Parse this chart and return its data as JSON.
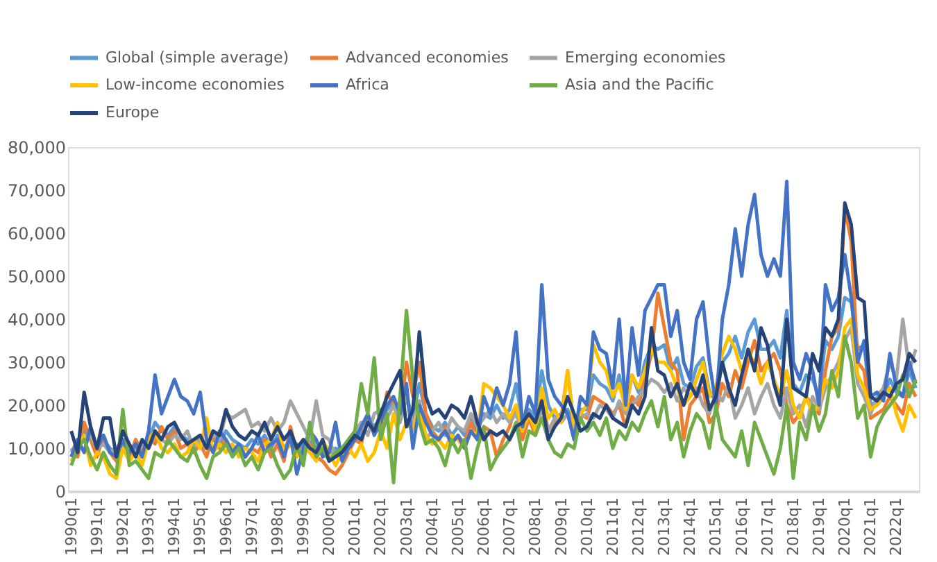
{
  "chart_data": {
    "type": "line",
    "categories": [
      "1990q1",
      null,
      null,
      null,
      "1991q1",
      null,
      null,
      null,
      "1992q1",
      null,
      null,
      null,
      "1993q1",
      null,
      null,
      null,
      "1994q1",
      null,
      null,
      null,
      "1995q1",
      null,
      null,
      null,
      "1996q1",
      null,
      null,
      null,
      "1997q1",
      null,
      null,
      null,
      "1998q1",
      null,
      null,
      null,
      "1999q1",
      null,
      null,
      null,
      "2000q1",
      null,
      null,
      null,
      "2001q1",
      null,
      null,
      null,
      "2002q1",
      null,
      null,
      null,
      "2003q1",
      null,
      null,
      null,
      "2004q1",
      null,
      null,
      null,
      "2005q1",
      null,
      null,
      null,
      "2006q1",
      null,
      null,
      null,
      "2007q1",
      null,
      null,
      null,
      "2008q1",
      null,
      null,
      null,
      "2009q1",
      null,
      null,
      null,
      "2010q1",
      null,
      null,
      null,
      "2011q1",
      null,
      null,
      null,
      "2012q1",
      null,
      null,
      null,
      "2013q1",
      null,
      null,
      null,
      "2014q1",
      null,
      null,
      null,
      "2015q1",
      null,
      null,
      null,
      "2016q1",
      null,
      null,
      null,
      "2017q1",
      null,
      null,
      null,
      "2018q1",
      null,
      null,
      null,
      "2019q1",
      null,
      null,
      null,
      "2020q1",
      null,
      null,
      null,
      "2021q1",
      null,
      null,
      null,
      "2022q1",
      null,
      null,
      null
    ],
    "ylim": [
      0,
      80000
    ],
    "yticks": [
      0,
      {
        "value": 10000,
        "label": "10,000"
      },
      {
        "value": 20000,
        "label": "20,000"
      },
      {
        "value": 30000,
        "label": "30,000"
      },
      {
        "value": 40000,
        "label": "40,000"
      },
      {
        "value": 50000,
        "label": "50,000"
      },
      {
        "value": 60000,
        "label": "60,000"
      },
      {
        "value": 70000,
        "label": "70,000"
      },
      {
        "value": 80000,
        "label": "80,000"
      }
    ],
    "grid": false,
    "legend": "top",
    "line_style": "solid",
    "marker": "none",
    "series": [
      {
        "name": "Global (simple average)",
        "color": "#5b9bd5",
        "values": [
          8000,
          11000,
          14000,
          12000,
          9000,
          12000,
          10000,
          9000,
          11000,
          9000,
          10000,
          8000,
          12000,
          16000,
          14000,
          13000,
          15000,
          13000,
          12000,
          11000,
          12000,
          10000,
          12000,
          11000,
          14000,
          12000,
          11000,
          10000,
          12000,
          11000,
          13000,
          10000,
          13000,
          10000,
          12000,
          9000,
          11000,
          12000,
          10000,
          9000,
          8000,
          10000,
          9000,
          11000,
          14000,
          13000,
          17000,
          15000,
          17000,
          19000,
          21000,
          19000,
          22000,
          17000,
          25000,
          18000,
          15000,
          14000,
          16000,
          13000,
          15000,
          13000,
          17000,
          14000,
          18000,
          17000,
          20000,
          17000,
          19000,
          25000,
          16000,
          19000,
          17000,
          28000,
          20000,
          17000,
          18000,
          19000,
          15000,
          19000,
          19000,
          27000,
          25000,
          24000,
          21000,
          27000,
          19000,
          27000,
          23000,
          30000,
          34000,
          33000,
          34000,
          28000,
          31000,
          25000,
          24000,
          29000,
          31000,
          23000,
          21000,
          30000,
          32000,
          36000,
          31000,
          37000,
          40000,
          33000,
          33000,
          35000,
          31000,
          42000,
          25000,
          23000,
          27000,
          26000,
          22000,
          35000,
          33000,
          36000,
          45000,
          44000,
          33000,
          34000,
          20000,
          21000,
          22000,
          26000,
          23000,
          22000,
          28000,
          24000
        ]
      },
      {
        "name": "Advanced economies",
        "color": "#ed7d31",
        "values": [
          10000,
          8000,
          16000,
          12000,
          8000,
          13000,
          9000,
          7000,
          10000,
          8000,
          12000,
          9000,
          13000,
          11000,
          15000,
          12000,
          14000,
          10000,
          11000,
          9000,
          11000,
          8000,
          13000,
          10000,
          12000,
          9000,
          10000,
          8000,
          10000,
          9000,
          12000,
          8000,
          11000,
          7000,
          15000,
          9000,
          10000,
          11000,
          8000,
          7000,
          5000,
          4000,
          6000,
          9000,
          12000,
          11000,
          18000,
          14000,
          15000,
          23000,
          20000,
          17000,
          30000,
          22000,
          30000,
          18000,
          14000,
          12000,
          15000,
          11000,
          13000,
          11000,
          16000,
          12000,
          15000,
          14000,
          8000,
          12000,
          15000,
          20000,
          12000,
          17000,
          13000,
          22000,
          14000,
          16000,
          17000,
          28000,
          15000,
          18000,
          17000,
          22000,
          21000,
          20000,
          18000,
          20000,
          15000,
          22000,
          20000,
          26000,
          32000,
          46000,
          38000,
          30000,
          28000,
          12000,
          20000,
          22000,
          24000,
          16000,
          18000,
          25000,
          22000,
          28000,
          24000,
          30000,
          35000,
          28000,
          30000,
          32000,
          28000,
          20000,
          16000,
          18000,
          22000,
          20000,
          18000,
          28000,
          36000,
          38000,
          66000,
          58000,
          30000,
          28000,
          17000,
          18000,
          19000,
          22000,
          20000,
          18000,
          25000,
          22000
        ]
      },
      {
        "name": "Emerging economies",
        "color": "#a5a5a5",
        "values": [
          9000,
          12000,
          12000,
          13000,
          10000,
          11000,
          9000,
          10000,
          12000,
          10000,
          9000,
          11000,
          10000,
          13000,
          12000,
          11000,
          13000,
          12000,
          14000,
          10000,
          12000,
          11000,
          13000,
          12000,
          18000,
          17000,
          18000,
          19000,
          15000,
          16000,
          14000,
          17000,
          14000,
          16000,
          21000,
          18000,
          15000,
          12000,
          21000,
          13000,
          12000,
          8000,
          10000,
          11000,
          14000,
          16000,
          13000,
          18000,
          19000,
          17000,
          20000,
          16000,
          22000,
          15000,
          21000,
          12000,
          14000,
          16000,
          13000,
          17000,
          15000,
          14000,
          18000,
          15000,
          17000,
          19000,
          16000,
          18000,
          16000,
          18000,
          14000,
          18000,
          15000,
          19000,
          14000,
          17000,
          16000,
          18000,
          14000,
          17000,
          18000,
          17000,
          20000,
          19000,
          17000,
          21000,
          18000,
          20000,
          22000,
          24000,
          26000,
          25000,
          23000,
          25000,
          21000,
          24000,
          22000,
          24000,
          20000,
          18000,
          23000,
          21000,
          25000,
          17000,
          20000,
          24000,
          18000,
          22000,
          25000,
          20000,
          17000,
          24000,
          18000,
          20000,
          15000,
          22000,
          19000,
          24000,
          27000,
          30000,
          35000,
          38000,
          25000,
          22000,
          18000,
          22000,
          24000,
          30000,
          26000,
          40000,
          28000,
          33000
        ]
      },
      {
        "name": "Low-income economies",
        "color": "#ffc000",
        "values": [
          7000,
          10000,
          13000,
          6000,
          9000,
          8000,
          4000,
          3000,
          10000,
          7000,
          9000,
          6000,
          12000,
          14000,
          10000,
          9000,
          11000,
          8000,
          9000,
          12000,
          10000,
          17000,
          9000,
          11000,
          9000,
          11000,
          8000,
          10000,
          9000,
          7000,
          11000,
          12000,
          16000,
          9000,
          11000,
          8000,
          10000,
          9000,
          7000,
          12000,
          9000,
          6000,
          9000,
          10000,
          8000,
          11000,
          7000,
          9000,
          14000,
          10000,
          18000,
          12000,
          16000,
          14000,
          20000,
          13000,
          11000,
          12000,
          10000,
          13000,
          12000,
          10000,
          14000,
          13000,
          25000,
          24000,
          22000,
          20000,
          17000,
          20000,
          14000,
          18000,
          14000,
          24000,
          17000,
          19000,
          16000,
          28000,
          15000,
          18000,
          20000,
          34000,
          30000,
          28000,
          22000,
          25000,
          19000,
          27000,
          24000,
          28000,
          33000,
          30000,
          30000,
          28000,
          24000,
          20000,
          22000,
          26000,
          30000,
          22000,
          24000,
          32000,
          36000,
          33000,
          28000,
          32000,
          30000,
          25000,
          30000,
          26000,
          22000,
          28000,
          20000,
          17000,
          22000,
          18000,
          20000,
          26000,
          24000,
          28000,
          38000,
          40000,
          27000,
          24000,
          19000,
          20000,
          22000,
          24000,
          18000,
          14000,
          20000,
          17000
        ]
      },
      {
        "name": "Africa",
        "color": "#4472c4",
        "values": [
          8000,
          12000,
          9000,
          15000,
          10000,
          13000,
          9000,
          8000,
          12000,
          9000,
          11000,
          8000,
          14000,
          27000,
          18000,
          22000,
          26000,
          22000,
          21000,
          18000,
          23000,
          12000,
          9000,
          14000,
          12000,
          9000,
          11000,
          8000,
          10000,
          13000,
          9000,
          11000,
          12000,
          8000,
          13000,
          4000,
          10000,
          14000,
          12000,
          8000,
          9000,
          16000,
          7000,
          10000,
          12000,
          15000,
          18000,
          13000,
          16000,
          20000,
          22000,
          18000,
          25000,
          10000,
          20000,
          16000,
          13000,
          12000,
          14000,
          11000,
          13000,
          10000,
          14000,
          12000,
          22000,
          18000,
          24000,
          20000,
          25000,
          37000,
          15000,
          22000,
          18000,
          48000,
          26000,
          22000,
          20000,
          18000,
          12000,
          22000,
          20000,
          37000,
          33000,
          32000,
          24000,
          40000,
          20000,
          38000,
          27000,
          42000,
          45000,
          48000,
          48000,
          36000,
          42000,
          30000,
          26000,
          40000,
          44000,
          30000,
          20000,
          40000,
          48000,
          61000,
          50000,
          62000,
          69000,
          55000,
          50000,
          54000,
          50000,
          72000,
          30000,
          26000,
          32000,
          28000,
          20000,
          48000,
          42000,
          45000,
          55000,
          45000,
          30000,
          35000,
          22000,
          23000,
          21000,
          32000,
          24000,
          22000,
          30000,
          25000
        ]
      },
      {
        "name": "Asia and the Pacific",
        "color": "#70ad47",
        "values": [
          6000,
          10000,
          12000,
          8000,
          5000,
          9000,
          6000,
          4000,
          19000,
          6000,
          7000,
          5000,
          3000,
          9000,
          8000,
          12000,
          10000,
          8000,
          7000,
          10000,
          6000,
          3000,
          8000,
          9000,
          11000,
          8000,
          10000,
          6000,
          8000,
          5000,
          9000,
          10000,
          6000,
          3000,
          5000,
          11000,
          6000,
          16000,
          8000,
          10000,
          7000,
          9000,
          10000,
          12000,
          14000,
          25000,
          18000,
          31000,
          12000,
          18000,
          2000,
          22000,
          42000,
          26000,
          16000,
          11000,
          12000,
          10000,
          6000,
          12000,
          9000,
          12000,
          3000,
          10000,
          15000,
          5000,
          8000,
          10000,
          12000,
          16000,
          8000,
          14000,
          13000,
          17000,
          12000,
          9000,
          8000,
          11000,
          10000,
          17000,
          14000,
          16000,
          13000,
          17000,
          10000,
          14000,
          12000,
          16000,
          14000,
          18000,
          21000,
          15000,
          22000,
          12000,
          16000,
          8000,
          14000,
          18000,
          16000,
          10000,
          20000,
          12000,
          10000,
          8000,
          14000,
          6000,
          16000,
          12000,
          8000,
          4000,
          10000,
          20000,
          3000,
          16000,
          12000,
          20000,
          14000,
          18000,
          28000,
          22000,
          36000,
          30000,
          17000,
          20000,
          8000,
          15000,
          18000,
          20000,
          22000,
          27000,
          22000,
          26000
        ]
      },
      {
        "name": "Europe",
        "color": "#264478",
        "values": [
          14000,
          9000,
          23000,
          15000,
          10000,
          17000,
          17000,
          8000,
          14000,
          11000,
          8000,
          12000,
          10000,
          14000,
          12000,
          15000,
          16000,
          13000,
          11000,
          12000,
          13000,
          10000,
          14000,
          13000,
          19000,
          15000,
          13000,
          12000,
          14000,
          13000,
          16000,
          12000,
          15000,
          12000,
          14000,
          10000,
          12000,
          10000,
          9000,
          12000,
          7000,
          8000,
          9000,
          11000,
          13000,
          12000,
          16000,
          14000,
          18000,
          22000,
          25000,
          28000,
          15000,
          19000,
          37000,
          22000,
          18000,
          19000,
          17000,
          20000,
          19000,
          17000,
          22000,
          16000,
          12000,
          14000,
          13000,
          14000,
          12000,
          15000,
          16000,
          18000,
          16000,
          21000,
          12000,
          15000,
          17000,
          22000,
          18000,
          14000,
          15000,
          18000,
          17000,
          20000,
          17000,
          16000,
          15000,
          20000,
          18000,
          22000,
          38000,
          28000,
          27000,
          22000,
          25000,
          20000,
          25000,
          22000,
          27000,
          19000,
          22000,
          30000,
          24000,
          20000,
          27000,
          33000,
          28000,
          38000,
          34000,
          25000,
          20000,
          40000,
          24000,
          23000,
          22000,
          32000,
          28000,
          38000,
          36000,
          40000,
          67000,
          62000,
          45000,
          44000,
          22000,
          21000,
          23000,
          22000,
          25000,
          26000,
          32000,
          30000
        ]
      }
    ]
  }
}
